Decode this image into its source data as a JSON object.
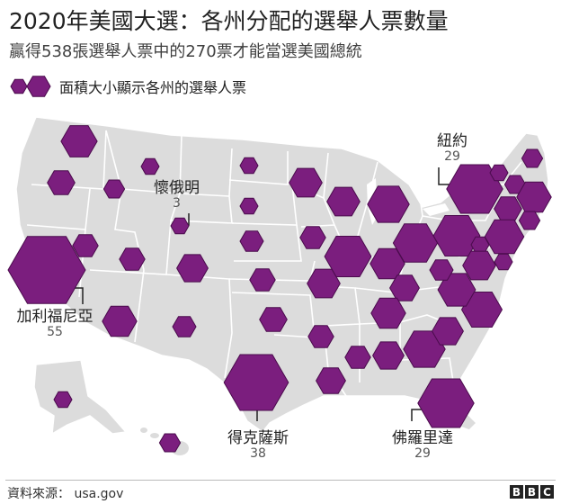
{
  "header": {
    "title": "2020年美國大選：各州分配的選舉人票數量",
    "subtitle": "贏得538張選舉人票中的270票才能當選美國總統"
  },
  "legend": {
    "text": "面積大小顯示各州的選舉人票"
  },
  "colors": {
    "land": "#dcdcdc",
    "border": "#ffffff",
    "hex_fill": "#7b1e7e",
    "hex_stroke": "#4a0b4c",
    "callout_line": "#222222"
  },
  "callouts": {
    "new_york": {
      "name": "紐約",
      "votes": "29"
    },
    "wyoming": {
      "name": "懷俄明",
      "votes": "3"
    },
    "california": {
      "name": "加利福尼亞",
      "votes": "55"
    },
    "texas": {
      "name": "得克薩斯",
      "votes": "38"
    },
    "florida": {
      "name": "佛羅里達",
      "votes": "29"
    }
  },
  "states": [
    {
      "state": "Washington",
      "votes": 12
    },
    {
      "state": "Oregon",
      "votes": 7
    },
    {
      "state": "California",
      "votes": 55
    },
    {
      "state": "Idaho",
      "votes": 4
    },
    {
      "state": "Nevada",
      "votes": 6
    },
    {
      "state": "Montana",
      "votes": 3
    },
    {
      "state": "Wyoming",
      "votes": 3
    },
    {
      "state": "Utah",
      "votes": 6
    },
    {
      "state": "Colorado",
      "votes": 9
    },
    {
      "state": "Arizona",
      "votes": 11
    },
    {
      "state": "New Mexico",
      "votes": 5
    },
    {
      "state": "North Dakota",
      "votes": 3
    },
    {
      "state": "South Dakota",
      "votes": 3
    },
    {
      "state": "Nebraska",
      "votes": 5
    },
    {
      "state": "Kansas",
      "votes": 6
    },
    {
      "state": "Oklahoma",
      "votes": 7
    },
    {
      "state": "Texas",
      "votes": 38
    },
    {
      "state": "Minnesota",
      "votes": 10
    },
    {
      "state": "Iowa",
      "votes": 6
    },
    {
      "state": "Missouri",
      "votes": 10
    },
    {
      "state": "Arkansas",
      "votes": 6
    },
    {
      "state": "Louisiana",
      "votes": 8
    },
    {
      "state": "Wisconsin",
      "votes": 10
    },
    {
      "state": "Illinois",
      "votes": 20
    },
    {
      "state": "Michigan",
      "votes": 16
    },
    {
      "state": "Indiana",
      "votes": 11
    },
    {
      "state": "Ohio",
      "votes": 18
    },
    {
      "state": "Kentucky",
      "votes": 8
    },
    {
      "state": "Tennessee",
      "votes": 11
    },
    {
      "state": "Mississippi",
      "votes": 6
    },
    {
      "state": "Alabama",
      "votes": 9
    },
    {
      "state": "Georgia",
      "votes": 16
    },
    {
      "state": "Florida",
      "votes": 29
    },
    {
      "state": "South Carolina",
      "votes": 9
    },
    {
      "state": "North Carolina",
      "votes": 15
    },
    {
      "state": "Virginia",
      "votes": 13
    },
    {
      "state": "West Virginia",
      "votes": 5
    },
    {
      "state": "Pennsylvania",
      "votes": 20
    },
    {
      "state": "New York",
      "votes": 29
    },
    {
      "state": "Vermont",
      "votes": 3
    },
    {
      "state": "New Hampshire",
      "votes": 4
    },
    {
      "state": "Maine",
      "votes": 4
    },
    {
      "state": "Massachusetts",
      "votes": 11
    },
    {
      "state": "Rhode Island",
      "votes": 4
    },
    {
      "state": "Connecticut",
      "votes": 7
    },
    {
      "state": "New Jersey",
      "votes": 14
    },
    {
      "state": "Delaware",
      "votes": 3
    },
    {
      "state": "Maryland",
      "votes": 10
    },
    {
      "state": "District of Columbia",
      "votes": 3
    },
    {
      "state": "Alaska",
      "votes": 3
    },
    {
      "state": "Hawaii",
      "votes": 4
    }
  ],
  "footer": {
    "source": "資料來源： usa.gov",
    "logo": "BBC"
  }
}
